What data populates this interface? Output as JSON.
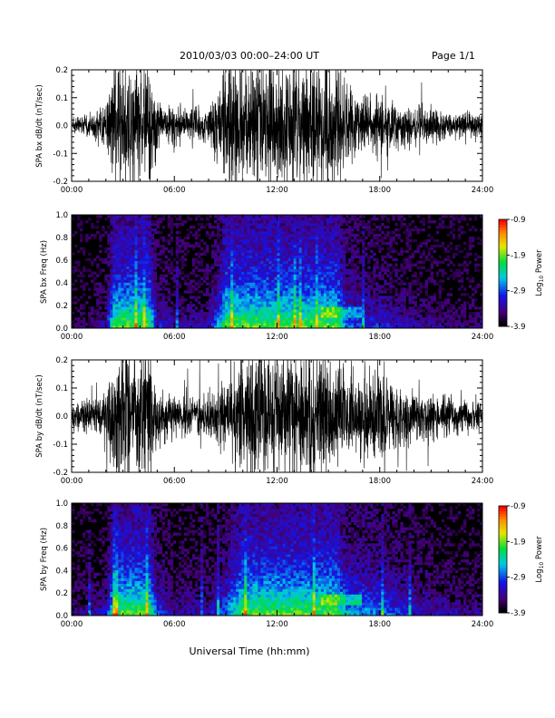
{
  "header": {
    "title": "2010/03/03  00:00–24:00 UT",
    "page": "Page 1/1"
  },
  "footer": {
    "xlabel": "Universal Time (hh:mm)"
  },
  "colorbar": {
    "label": "Log",
    "label_sub": "10",
    "label_suffix": " Power",
    "ticks": [
      "-0.9",
      "-1.9",
      "-2.9",
      "-3.9"
    ],
    "range": [
      -3.9,
      -0.9
    ]
  },
  "chart_data": [
    {
      "type": "line",
      "ylabel": "SPA bx dB/dt (nT/sec)",
      "x_ticks": [
        "00:00",
        "06:00",
        "12:00",
        "18:00",
        "24:00"
      ],
      "xlim_hours": [
        0,
        24
      ],
      "y_ticks": [
        "0.2",
        "0.1",
        "0.0",
        "-0.1",
        "-0.2"
      ],
      "ylim": [
        -0.2,
        0.2
      ],
      "envelope": {
        "hours": [
          0,
          1,
          2,
          2.5,
          3,
          3.5,
          4,
          4.5,
          5,
          6,
          7,
          8,
          8.5,
          9,
          10,
          10.5,
          11,
          12,
          13,
          14,
          14.5,
          15,
          15.5,
          16,
          17,
          18,
          19,
          20,
          22,
          24
        ],
        "amplitude": [
          0.02,
          0.035,
          0.06,
          0.2,
          0.2,
          0.2,
          0.2,
          0.2,
          0.08,
          0.06,
          0.06,
          0.06,
          0.12,
          0.2,
          0.2,
          0.2,
          0.2,
          0.2,
          0.2,
          0.2,
          0.2,
          0.2,
          0.2,
          0.12,
          0.09,
          0.09,
          0.07,
          0.06,
          0.04,
          0.04
        ]
      }
    },
    {
      "type": "heatmap",
      "ylabel": "SPA bx Freq (Hz)",
      "x_ticks": [
        "00:00",
        "06:00",
        "12:00",
        "18:00",
        "24:00"
      ],
      "xlim_hours": [
        0,
        24
      ],
      "y_ticks": [
        "1.0",
        "0.8",
        "0.6",
        "0.4",
        "0.2",
        "0.0"
      ],
      "ylim": [
        0,
        1.0
      ],
      "colorbar_range": [
        -3.9,
        -0.9
      ]
    },
    {
      "type": "line",
      "ylabel": "SPA by dB/dt (nT/sec)",
      "x_ticks": [
        "00:00",
        "06:00",
        "12:00",
        "18:00",
        "24:00"
      ],
      "xlim_hours": [
        0,
        24
      ],
      "y_ticks": [
        "0.2",
        "0.1",
        "0.0",
        "-0.1",
        "-0.2"
      ],
      "ylim": [
        -0.2,
        0.2
      ],
      "envelope": {
        "hours": [
          0,
          1,
          2,
          2.5,
          3,
          3.5,
          4,
          4.5,
          5,
          6,
          7,
          8,
          9,
          10,
          11,
          12,
          13,
          14,
          15,
          15.5,
          16,
          17,
          18,
          19,
          20,
          22,
          24
        ],
        "amplitude": [
          0.04,
          0.05,
          0.07,
          0.2,
          0.2,
          0.2,
          0.2,
          0.2,
          0.1,
          0.06,
          0.06,
          0.06,
          0.12,
          0.2,
          0.2,
          0.2,
          0.2,
          0.2,
          0.2,
          0.2,
          0.14,
          0.13,
          0.12,
          0.1,
          0.08,
          0.06,
          0.05
        ]
      }
    },
    {
      "type": "heatmap",
      "ylabel": "SPA by Freq (Hz)",
      "x_ticks": [
        "00:00",
        "06:00",
        "12:00",
        "18:00",
        "24:00"
      ],
      "xlim_hours": [
        0,
        24
      ],
      "y_ticks": [
        "1.0",
        "0.8",
        "0.6",
        "0.4",
        "0.2",
        "0.0"
      ],
      "ylim": [
        0,
        1.0
      ],
      "colorbar_range": [
        -3.9,
        -0.9
      ]
    }
  ]
}
